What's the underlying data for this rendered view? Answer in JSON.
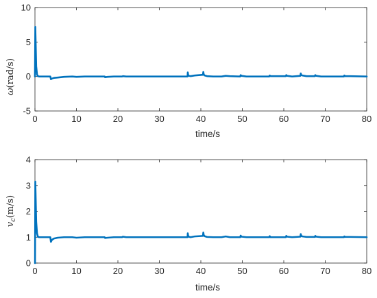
{
  "figure": {
    "background": "#ffffff",
    "line_color": "#0072BD",
    "axis_color": "#262626"
  },
  "chart_data": [
    {
      "type": "line",
      "title": "",
      "xlabel": "time/s",
      "ylabel_var": "ω",
      "ylabel_unit": "(rad/s)",
      "xlim": [
        0,
        80
      ],
      "ylim": [
        -5,
        10
      ],
      "xticks": [
        "0",
        "10",
        "20",
        "30",
        "40",
        "50",
        "60",
        "70",
        "80"
      ],
      "yticks": [
        "-5",
        "0",
        "5",
        "10"
      ],
      "grid": false,
      "legend": "none",
      "series": [
        {
          "color": "#0072BD",
          "x": [
            0,
            0.08,
            0.15,
            0.3,
            0.5,
            0.7,
            1.0,
            1.5,
            2.5,
            3.7,
            3.8,
            3.85,
            4.1,
            4.6,
            5.5,
            7,
            9,
            10,
            12,
            14,
            16.8,
            16.9,
            17.5,
            19,
            21,
            21.2,
            22,
            25,
            28,
            31,
            34,
            36.8,
            36.85,
            36.95,
            37.1,
            37.5,
            38.5,
            40.5,
            40.6,
            40.7,
            40.9,
            41.5,
            43,
            45,
            46,
            47,
            49.5,
            49.6,
            49.8,
            51,
            53,
            56.5,
            56.6,
            56.8,
            58,
            60.5,
            60.6,
            60.8,
            62,
            64,
            64.1,
            64.2,
            64.5,
            65.5,
            67.5,
            67.6,
            67.8,
            69,
            71,
            74.5,
            74.6,
            74.8,
            76,
            80
          ],
          "y": [
            0,
            7.2,
            5.5,
            1.5,
            0.3,
            0.05,
            0.0,
            0.0,
            0.0,
            0.0,
            -0.25,
            -0.4,
            -0.3,
            -0.2,
            -0.15,
            -0.05,
            0.0,
            -0.05,
            0.0,
            0.0,
            0.0,
            -0.1,
            -0.05,
            0.0,
            0.0,
            0.05,
            0.0,
            0.0,
            0.0,
            0.0,
            0.0,
            0.0,
            0.6,
            0.2,
            0.1,
            0.05,
            0.15,
            0.25,
            0.65,
            0.3,
            0.15,
            0.05,
            0.0,
            0.0,
            0.1,
            0.05,
            0.0,
            0.2,
            0.1,
            0.0,
            0.0,
            0.0,
            0.15,
            0.05,
            0.05,
            0.05,
            0.2,
            0.1,
            0.0,
            0.1,
            0.45,
            0.2,
            0.15,
            0.05,
            0.05,
            0.2,
            0.1,
            0.0,
            0.0,
            0.0,
            0.15,
            0.05,
            0.05,
            0.0
          ]
        }
      ]
    },
    {
      "type": "line",
      "title": "",
      "xlabel": "time/s",
      "ylabel_var": "v",
      "ylabel_sub": "c",
      "ylabel_unit": "(m/s)",
      "xlim": [
        0,
        80
      ],
      "ylim": [
        0,
        4
      ],
      "xticks": [
        "0",
        "10",
        "20",
        "30",
        "40",
        "50",
        "60",
        "70",
        "80"
      ],
      "yticks": [
        "0",
        "1",
        "2",
        "3",
        "4"
      ],
      "grid": false,
      "legend": "none",
      "series": [
        {
          "color": "#0072BD",
          "x": [
            0,
            0.02,
            0.08,
            0.15,
            0.3,
            0.5,
            0.7,
            1.0,
            1.5,
            2.5,
            3.7,
            3.8,
            3.85,
            4.1,
            4.6,
            5.5,
            7,
            9,
            10,
            12,
            14,
            16.8,
            16.9,
            17.5,
            19,
            21,
            21.2,
            22,
            25,
            28,
            31,
            34,
            36.8,
            36.85,
            36.95,
            37.1,
            37.5,
            38.5,
            40.5,
            40.6,
            40.7,
            40.9,
            41.5,
            43,
            45,
            46,
            47,
            49.5,
            49.6,
            49.8,
            51,
            53,
            56.5,
            56.6,
            56.8,
            58,
            60.5,
            60.6,
            60.8,
            62,
            64,
            64.1,
            64.2,
            64.5,
            65.5,
            67.5,
            67.6,
            67.8,
            69,
            71,
            74.5,
            74.6,
            74.8,
            76,
            80
          ],
          "y": [
            0,
            0,
            3.15,
            2.7,
            1.6,
            1.15,
            1.02,
            1.0,
            1.0,
            1.0,
            1.0,
            0.88,
            0.82,
            0.9,
            0.95,
            0.98,
            1.0,
            1.0,
            0.98,
            1.0,
            1.0,
            1.0,
            0.97,
            0.98,
            1.0,
            1.0,
            1.02,
            1.0,
            1.0,
            1.0,
            1.0,
            1.0,
            1.0,
            1.15,
            1.05,
            1.02,
            1.0,
            1.03,
            1.05,
            1.18,
            1.08,
            1.04,
            1.01,
            1.0,
            1.0,
            1.03,
            1.0,
            1.0,
            1.06,
            1.02,
            1.0,
            1.0,
            1.0,
            1.04,
            1.0,
            1.0,
            1.0,
            1.05,
            1.02,
            1.0,
            1.02,
            1.12,
            1.05,
            1.03,
            1.01,
            1.01,
            1.05,
            1.02,
            1.0,
            1.0,
            1.0,
            1.03,
            1.01,
            1.01,
            1.0
          ]
        }
      ]
    }
  ]
}
